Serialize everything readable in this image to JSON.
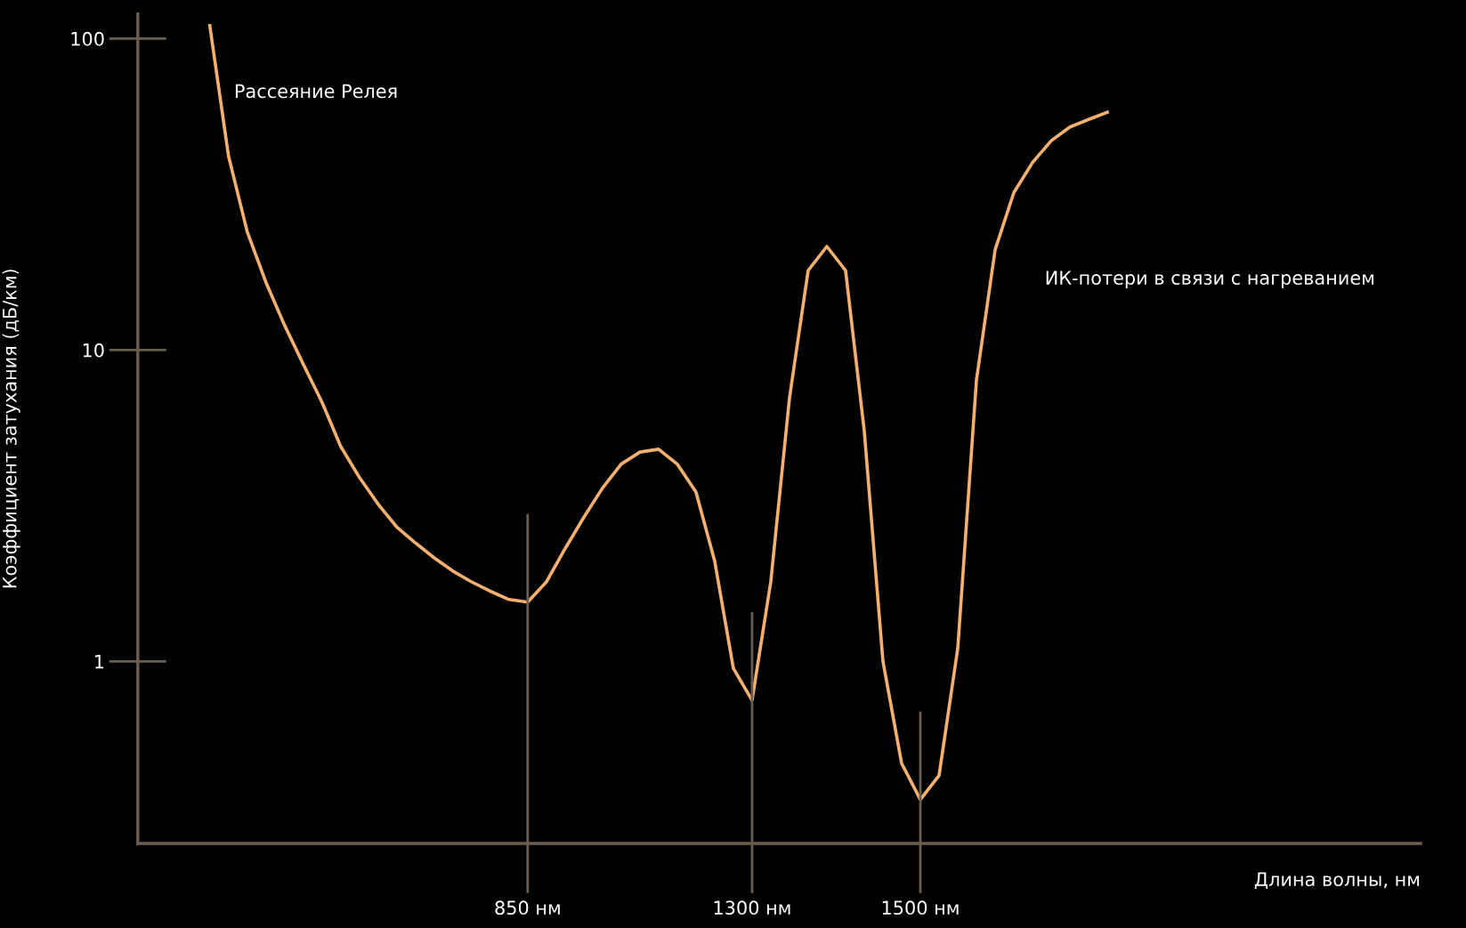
{
  "chart_data": {
    "type": "line",
    "ylabel": "Коэффициент затухания (дБ/км)",
    "categories": [
      null,
      null,
      null,
      null,
      null,
      null,
      null,
      null,
      null,
      null,
      null,
      null,
      null,
      null,
      null,
      null,
      null,
      "850 нм",
      null,
      null,
      null,
      null,
      null,
      null,
      null,
      null,
      null,
      null,
      null,
      "1300 нм",
      null,
      null,
      null,
      null,
      null,
      null,
      null,
      null,
      "1500 нм",
      null,
      null,
      null,
      null,
      null,
      null,
      null,
      null,
      null,
      null
    ],
    "series": [
      {
        "color": "#f5b070",
        "values": [
          110,
          42,
          24,
          16.5,
          12,
          9,
          6.8,
          4.9,
          3.9,
          3.2,
          2.7,
          2.4,
          2.15,
          1.95,
          1.8,
          1.68,
          1.58,
          1.55,
          1.8,
          2.3,
          2.9,
          3.6,
          4.3,
          4.7,
          4.8,
          4.3,
          3.5,
          2.1,
          0.95,
          0.75,
          1.8,
          7,
          18,
          21.5,
          18,
          5.5,
          1.0,
          0.47,
          0.36,
          0.43,
          1.1,
          8,
          21,
          32,
          40,
          47,
          52,
          55,
          58
        ]
      }
    ],
    "log": "y",
    "ylim": [
      0.26,
      120
    ],
    "yticks": [
      1,
      10,
      100
    ],
    "grid": false,
    "legend": false,
    "marker": "none",
    "line_style": "solid",
    "ref_lines": [
      {
        "axis": "x",
        "value": "850 нм",
        "color": "#6b5e4f"
      },
      {
        "axis": "x",
        "value": "1300 нм",
        "color": "#6b5e4f"
      },
      {
        "axis": "x",
        "value": "1500 нм",
        "color": "#6b5e4f"
      }
    ],
    "annotations": [
      "Рассеяние Релея",
      "ИК-потери в связи с нагреванием",
      "Длина волны, нм"
    ]
  }
}
